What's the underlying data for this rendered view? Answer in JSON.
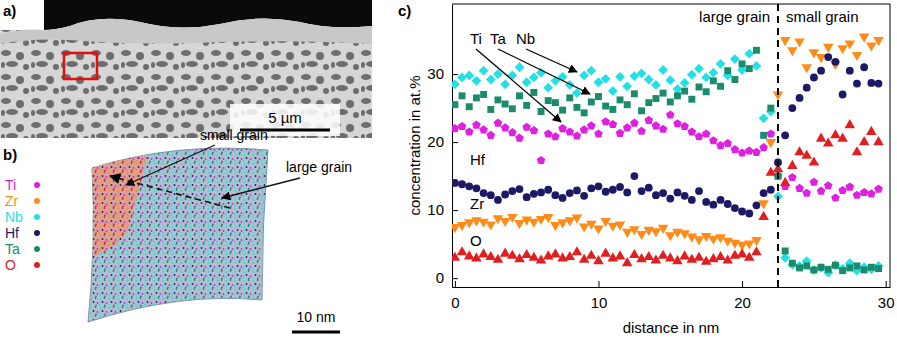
{
  "panels": {
    "a": {
      "label": "a)",
      "scale_bar": "5 µm"
    },
    "b": {
      "label": "b)",
      "labels": [
        "small grain",
        "large grain"
      ],
      "scale_bar": "10 nm"
    }
  },
  "chart_data": {
    "type": "scatter",
    "panel_label": "c)",
    "xlabel": "distance in nm",
    "ylabel": "concentration in at.%",
    "xlim": [
      -0.2,
      30.3
    ],
    "ylim": [
      -1.3,
      40.3
    ],
    "xticks": [
      0,
      10,
      20,
      30
    ],
    "yticks": [
      0,
      10,
      20,
      30
    ],
    "grid": false,
    "vlines": [
      22.5
    ],
    "annotations": [
      {
        "text": "large grain"
      },
      {
        "text": "small grain"
      }
    ],
    "x": [
      0,
      0.5,
      1,
      1.5,
      2,
      2.5,
      3,
      3.5,
      4,
      4.5,
      5,
      5.5,
      6,
      6.5,
      7,
      7.5,
      8,
      8.5,
      9,
      9.5,
      10,
      10.5,
      11,
      11.5,
      12,
      12.5,
      13,
      13.5,
      14,
      14.5,
      15,
      15.5,
      16,
      16.5,
      17,
      17.5,
      18,
      18.5,
      19,
      19.5,
      20,
      20.5,
      21,
      21.5,
      22,
      22.5,
      23,
      23.5,
      24,
      24.5,
      25,
      25.5,
      26,
      26.5,
      27,
      27.5,
      28,
      28.5,
      29,
      29.5
    ],
    "series": [
      {
        "name": "Ti",
        "color": "#e020e0",
        "marker": "pentagon",
        "values": [
          22,
          22.3,
          21.5,
          22.5,
          21.8,
          21,
          22.8,
          22.1,
          21.4,
          20.6,
          22.2,
          21.7,
          17.3,
          21.2,
          20.8,
          22,
          21.5,
          20.9,
          21.8,
          22.4,
          21.2,
          23,
          22.6,
          21.3,
          22.1,
          22.8,
          21.6,
          23.2,
          22.4,
          21.9,
          24,
          22.7,
          22.3,
          21.5,
          20.8,
          21.2,
          20.2,
          19.5,
          19.8,
          18.9,
          18.4,
          18.7,
          18.5,
          19.2,
          21.2,
          15,
          13.5,
          14.8,
          13.2,
          12.5,
          14.1,
          12.8,
          13.6,
          11.8,
          12.9,
          13.4,
          12.2,
          12.6,
          12.4,
          13.1
        ]
      },
      {
        "name": "Zr",
        "color": "#ff8c1a",
        "marker": "triangle-down",
        "values": [
          7.5,
          7.8,
          8.2,
          8.5,
          8.3,
          7.9,
          8.8,
          8.4,
          9,
          8.1,
          8.6,
          8.3,
          8.7,
          9,
          7.8,
          8.2,
          8.5,
          8.9,
          7.6,
          8,
          7.3,
          8.4,
          7.7,
          7.9,
          6.8,
          7.2,
          6.5,
          7.1,
          6.9,
          7.4,
          6.3,
          6.8,
          6.6,
          6.1,
          5.7,
          6.2,
          5.8,
          6,
          5.5,
          5.2,
          4.9,
          5.1,
          5.6,
          11,
          20,
          27,
          35,
          33.5,
          34.8,
          31,
          33.2,
          32.5,
          34,
          31.5,
          33.8,
          34.5,
          32.8,
          35.5,
          34.2,
          35
        ]
      },
      {
        "name": "Nb",
        "color": "#22e0e6",
        "marker": "diamond",
        "values": [
          28.5,
          29.5,
          29.8,
          29,
          30.5,
          29.2,
          30,
          28.5,
          29.8,
          31,
          28.8,
          29.5,
          30.2,
          28,
          29,
          29.6,
          28.4,
          27.2,
          29.8,
          30.5,
          28.8,
          29.3,
          27.5,
          29.6,
          28.2,
          29.7,
          30.1,
          29.2,
          28.4,
          30.6,
          29.1,
          27.8,
          28.7,
          29.9,
          30.8,
          29.5,
          30.2,
          31.5,
          29.8,
          32.2,
          30.6,
          33,
          31.2,
          23.5,
          24.5,
          12,
          3,
          2,
          1.8,
          2.5,
          1.2,
          1.5,
          0.8,
          1.9,
          1.4,
          2.2,
          1.1,
          1.6,
          1.3,
          1.8
        ]
      },
      {
        "name": "Hf",
        "color": "#1c1a66",
        "marker": "circle",
        "values": [
          14,
          13.8,
          13.5,
          13.2,
          12.5,
          12.2,
          11.5,
          12.3,
          12.8,
          13.1,
          11.9,
          12.4,
          12.6,
          13,
          12.2,
          11.8,
          12.5,
          12.9,
          12.1,
          13.2,
          13.5,
          12.7,
          13,
          13.4,
          12.6,
          15,
          12.8,
          13.3,
          12.2,
          12.5,
          11.7,
          12.6,
          12.1,
          11.5,
          12.8,
          11.2,
          10.8,
          11.5,
          10.9,
          10.3,
          9.8,
          9.5,
          10.7,
          12.5,
          13,
          17,
          21,
          25,
          26.5,
          28,
          29.5,
          30.5,
          32.5,
          31.8,
          27,
          30.5,
          28.6,
          31,
          28.7,
          28.6
        ]
      },
      {
        "name": "Ta",
        "color": "#1a8c6c",
        "marker": "square",
        "values": [
          25.5,
          26.8,
          25.2,
          26.5,
          27,
          24.8,
          26.2,
          25.6,
          24.9,
          26.8,
          25.4,
          27.3,
          24.5,
          26.1,
          25.8,
          24.7,
          26.5,
          25.1,
          24.3,
          25.9,
          26.7,
          25.3,
          24.8,
          26.2,
          25.5,
          27.1,
          24.6,
          25.8,
          26.4,
          27.2,
          25.9,
          26.8,
          27.5,
          26.3,
          28.1,
          27.4,
          29,
          28.2,
          30.5,
          29.2,
          31.5,
          30.8,
          33.5,
          21,
          25,
          15,
          4,
          2.2,
          1.5,
          1.8,
          1.2,
          1.6,
          1.3,
          1.9,
          1.1,
          1.5,
          1.8,
          1.2,
          1.6,
          1.4
        ]
      },
      {
        "name": "O",
        "color": "#e02020",
        "marker": "triangle-up",
        "values": [
          3,
          3.8,
          3.2,
          2.9,
          3.5,
          3.1,
          2.7,
          3.6,
          3.3,
          2.8,
          3.4,
          3,
          2.6,
          3.2,
          3.5,
          2.9,
          3.1,
          3.8,
          2.7,
          3.3,
          2.5,
          3.6,
          2.9,
          3.2,
          2.2,
          3.4,
          2.8,
          3.1,
          2.6,
          3.3,
          2.9,
          2.5,
          3.2,
          2.7,
          3,
          2.4,
          2.8,
          3.1,
          2.6,
          3.3,
          3.5,
          3,
          3.8,
          9,
          15.5,
          16,
          14,
          16.5,
          18.5,
          18,
          17,
          20.5,
          19.8,
          21,
          20.5,
          22.5,
          18.5,
          20,
          21.5,
          20
        ]
      }
    ]
  }
}
